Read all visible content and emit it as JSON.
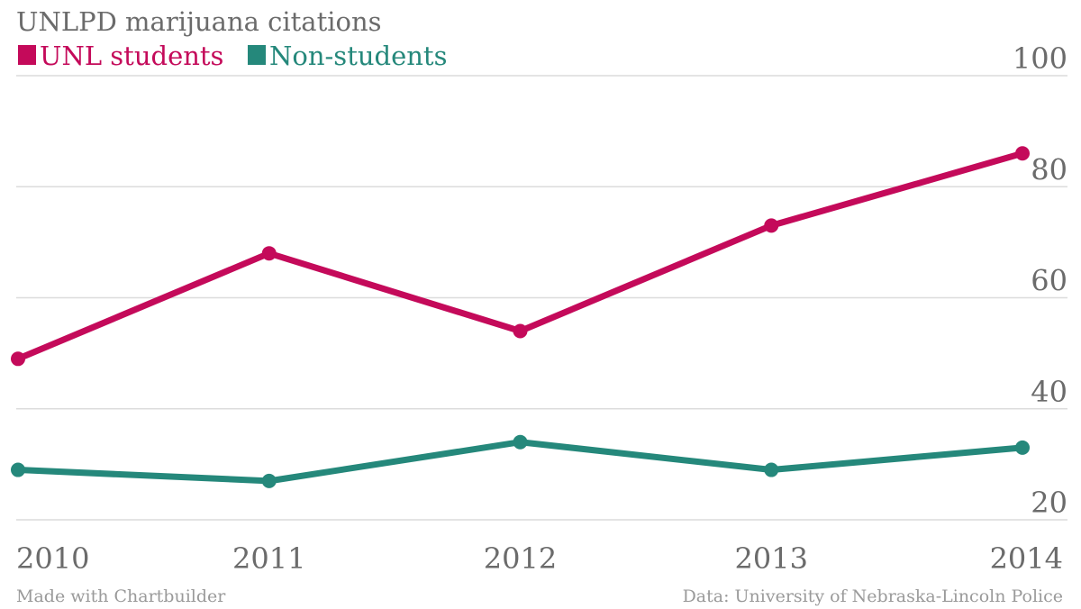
{
  "chart_data": {
    "type": "line",
    "title": "UNLPD marijuana citations",
    "categories": [
      "2010",
      "2011",
      "2012",
      "2013",
      "2014"
    ],
    "series": [
      {
        "name": "UNL students",
        "color": "#c40a5a",
        "values": [
          49,
          68,
          54,
          73,
          86
        ]
      },
      {
        "name": "Non-students",
        "color": "#25887b",
        "values": [
          29,
          27,
          34,
          29,
          33
        ]
      }
    ],
    "yticks": [
      20,
      40,
      60,
      80,
      100
    ],
    "ylim": [
      20,
      100
    ],
    "grid": true,
    "legend_position": "top-left",
    "y_axis_side": "right"
  },
  "footer": {
    "credit": "Made with Chartbuilder",
    "source": "Data: University of Nebraska-Lincoln Police"
  }
}
